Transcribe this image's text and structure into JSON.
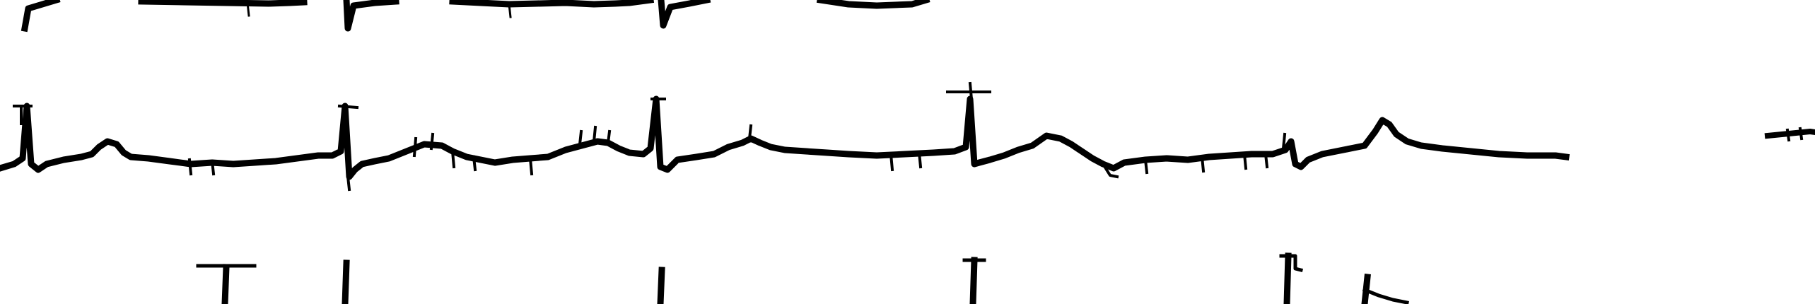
{
  "colors": {
    "background": "#ffffff",
    "trace": "#000000"
  },
  "traces": [
    {
      "name": "top-lead-trace"
    },
    {
      "name": "middle-lead-trace"
    },
    {
      "name": "bottom-lead-trace"
    },
    {
      "name": "right-edge-fragment"
    }
  ]
}
